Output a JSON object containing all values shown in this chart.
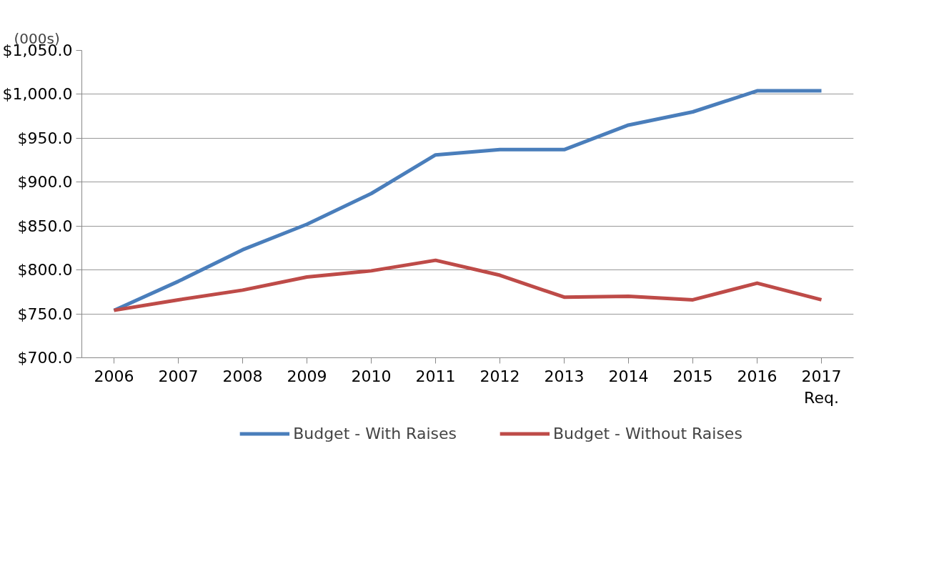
{
  "chart_data": {
    "type": "line",
    "ylabel": "(000s)",
    "categories": [
      "2006",
      "2007",
      "2008",
      "2009",
      "2010",
      "2011",
      "2012",
      "2013",
      "2014",
      "2015",
      "2016",
      "2017\nReq."
    ],
    "series": [
      {
        "name": "Budget - With Raises",
        "color": "#4a7ebb",
        "values": [
          754,
          787,
          823,
          852,
          887,
          931,
          937,
          937,
          965,
          980,
          1004,
          1004
        ]
      },
      {
        "name": "Budget - Without Raises",
        "color": "#be4b48",
        "values": [
          754,
          766,
          777,
          792,
          799,
          811,
          794,
          769,
          770,
          766,
          785,
          766
        ]
      }
    ],
    "ylim": [
      700,
      1050
    ],
    "yticks": [
      {
        "value": 700,
        "label": "$700.0"
      },
      {
        "value": 750,
        "label": "$750.0"
      },
      {
        "value": 800,
        "label": "$800.0"
      },
      {
        "value": 850,
        "label": "$850.0"
      },
      {
        "value": 900,
        "label": "$900.0"
      },
      {
        "value": 950,
        "label": "$950.0"
      },
      {
        "value": 1000,
        "label": "$1,000.0"
      },
      {
        "value": 1050,
        "label": "$1,050.0"
      }
    ],
    "grid": "y",
    "legend": "bottom",
    "marker": "none",
    "line_style": "solid"
  }
}
